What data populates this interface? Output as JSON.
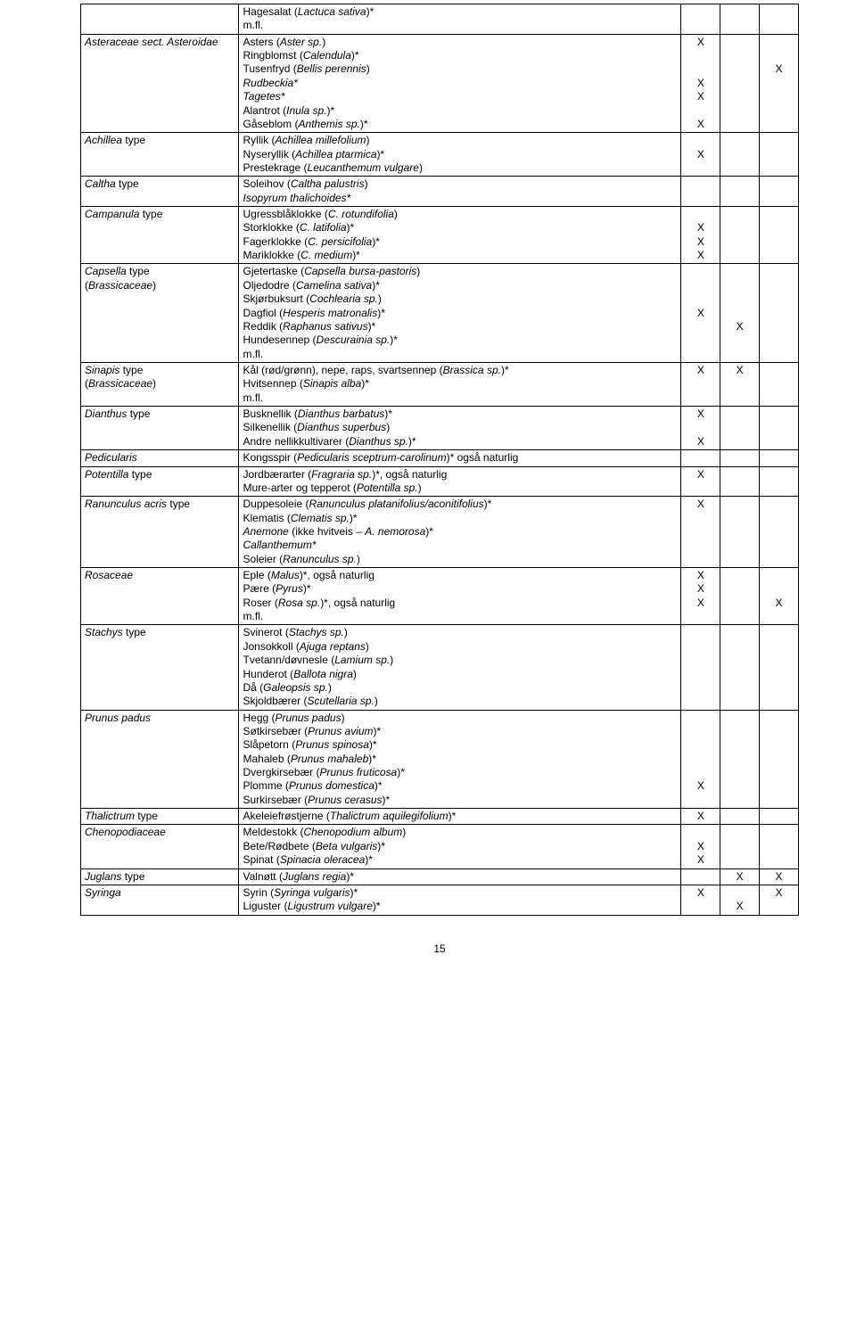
{
  "page_number": "15",
  "rows": [
    {
      "col1": "",
      "col2": "Hagesalat (<i>Lactuca sativa</i>)*<br>m.fl.",
      "c3": "",
      "c4": "",
      "c5": ""
    },
    {
      "col1": "<i>Asteraceae sect. Asteroidae</i>",
      "col2": "Asters (<i>Aster sp.</i>)<br>Ringblomst (<i>Calendula</i>)*<br>Tusenfryd (<i>Bellis perennis</i>)<br><i>Rudbeckia*</i><br><i>Tagetes*</i><br>Alantrot (<i>Inula sp.</i>)*<br>Gåseblom (<i>Anthemis sp.</i>)*",
      "c3": "X<br><br><br>X<br>X<br><br>X",
      "c4": "",
      "c5": "<br><br>X"
    },
    {
      "col1": "<i>Achillea</i> type",
      "col2": "Ryllik (<i>Achillea millefolium</i>)<br>Nyseryllik (<i>Achillea ptarmica</i>)*<br>Prestekrage (<i>Leucanthemum vulgare</i>)",
      "c3": "<br>X",
      "c4": "",
      "c5": ""
    },
    {
      "col1": "<i>Caltha</i> type",
      "col2": "Soleihov (<i>Caltha palustris</i>)<br><i>Isopyrum thalichoides*</i>",
      "c3": "",
      "c4": "",
      "c5": ""
    },
    {
      "col1": "<i>Campanula</i> type",
      "col2": "Ugressblåklokke (<i>C. rotundifolia</i>)<br>Storklokke (<i>C. latifolia</i>)*<br>Fagerklokke (<i>C. persicifolia</i>)*<br>Mariklokke (<i>C. medium</i>)*",
      "c3": "<br>X<br>X<br>X",
      "c4": "",
      "c5": ""
    },
    {
      "col1": "<i>Capsella</i> type<br>(<i>Brassicaceae</i>)",
      "col2": "Gjetertaske (<i>Capsella bursa-pastoris</i>)<br>Oljedodre (<i>Camelina sativa</i>)*<br>Skjørbuksurt (<i>Cochlearia sp.</i>)<br>Dagfiol (<i>Hesperis matronalis</i>)*<br>Reddik (<i>Raphanus sativus</i>)*<br>Hundesennep (<i>Descurainia sp.</i>)*<br>m.fl.",
      "c3": "<br><br><br>X",
      "c4": "<br><br><br><br>X",
      "c5": ""
    },
    {
      "col1": "<i>Sinapis</i> type<br>(<i>Brassicaceae</i>)",
      "col2": "Kål (rød/grønn), nepe, raps, svartsennep (<i>Brassica sp.</i>)*<br>Hvitsennep (<i>Sinapis alba</i>)*<br>m.fl.",
      "c3": "X",
      "c4": "X",
      "c5": ""
    },
    {
      "col1": "<i>Dianthus</i> type",
      "col2": "Busknellik (<i>Dianthus barbatus</i>)*<br>Silkenellik (<i>Dianthus superbus</i>)<br>Andre nellikkultivarer (<i>Dianthus sp.</i>)*",
      "c3": "X<br><br>X",
      "c4": "",
      "c5": ""
    },
    {
      "col1": "<i>Pedicularis</i>",
      "col2": "Kongsspir (<i>Pedicularis sceptrum-carolinum</i>)* også naturlig",
      "c3": "",
      "c4": "",
      "c5": ""
    },
    {
      "col1": "<i>Potentilla</i> type",
      "col2": "Jordbærarter (<i>Fragraria sp.</i>)*, også naturlig<br>Mure-arter og tepperot (<i>Potentilla sp.</i>)",
      "c3": "X",
      "c4": "",
      "c5": ""
    },
    {
      "col1": "<i>Ranunculus acris</i> type",
      "col2": "Duppesoleie (<i>Ranunculus platanifolius/aconitifolius</i>)*<br>Klematis (<i>Clematis sp.</i>)*<br><i>Anemone</i> (ikke hvitveis – <i>A. nemorosa</i>)*<br><i>Callanthemum*</i><br>Soleier (<i>Ranunculus sp.</i>)",
      "c3": "X",
      "c4": "",
      "c5": ""
    },
    {
      "col1": "<i>Rosaceae</i>",
      "col2": "Eple (<i>Malus</i>)*, også naturlig<br>Pære (<i>Pyrus</i>)*<br>Roser (<i>Rosa sp.</i>)*, også naturlig<br>m.fl.",
      "c3": "X<br>X<br>X",
      "c4": "",
      "c5": "<br><br>X"
    },
    {
      "col1": "<i>Stachys</i> type",
      "col2": "Svinerot (<i>Stachys sp.</i>)<br>Jonsokkoll (<i>Ajuga reptans</i>)<br>Tvetann/døvnesle (<i>Lamium sp.</i>)<br>Hunderot (<i>Ballota nigra</i>)<br>Då (<i>Galeopsis sp.</i>)<br>Skjoldbærer (<i>Scutellaria sp.</i>)",
      "c3": "",
      "c4": "",
      "c5": ""
    },
    {
      "col1": "<i>Prunus padus</i>",
      "col2": "Hegg (<i>Prunus padus</i>)<br>Søtkirsebær (<i>Prunus avium</i>)*<br>Slåpetorn (<i>Prunus spinosa</i>)*<br>Mahaleb (<i>Prunus mahaleb</i>)*<br>Dvergkirsebær (<i>Prunus fruticosa</i>)*<br>Plomme (<i>Prunus domestica</i>)*<br>Surkirsebær (<i>Prunus cerasus</i>)*",
      "c3": "<br><br><br><br><br>X",
      "c4": "",
      "c5": ""
    },
    {
      "col1": "<i>Thalictrum</i> type",
      "col2": "Akeleiefrøstjerne (<i>Thalictrum aquilegifolium</i>)*",
      "c3": "X",
      "c4": "",
      "c5": ""
    },
    {
      "col1": "<i>Chenopodiaceae</i>",
      "col2": "Meldestokk (<i>Chenopodium album</i>)<br>Bete/Rødbete (<i>Beta vulgaris</i>)*<br>Spinat (<i>Spinacia oleracea</i>)*",
      "c3": "<br>X<br>X",
      "c4": "",
      "c5": ""
    },
    {
      "col1": "<i>Juglans</i> type",
      "col2": "Valnøtt (<i>Juglans regia</i>)*",
      "c3": "",
      "c4": "X",
      "c5": "X"
    },
    {
      "col1": "<i>Syringa</i>",
      "col2": "Syrin (<i>Syringa vulgaris</i>)*<br>Liguster (<i>Ligustrum vulgare</i>)*",
      "c3": "X",
      "c4": "<br>X",
      "c5": "X"
    }
  ]
}
